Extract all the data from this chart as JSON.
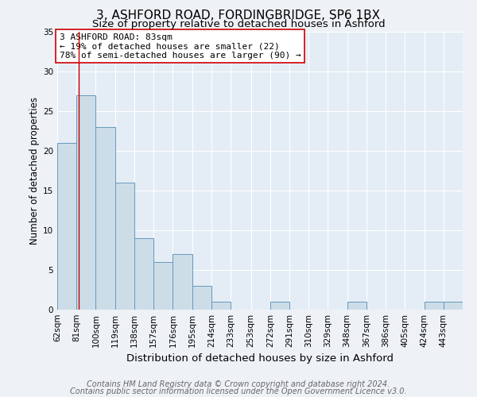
{
  "title1": "3, ASHFORD ROAD, FORDINGBRIDGE, SP6 1BX",
  "title2": "Size of property relative to detached houses in Ashford",
  "xlabel": "Distribution of detached houses by size in Ashford",
  "ylabel": "Number of detached properties",
  "bins": [
    62,
    81,
    100,
    119,
    138,
    157,
    176,
    195,
    214,
    233,
    253,
    272,
    291,
    310,
    329,
    348,
    367,
    386,
    405,
    424,
    443
  ],
  "counts": [
    21,
    27,
    23,
    16,
    9,
    6,
    7,
    3,
    1,
    0,
    0,
    1,
    0,
    0,
    0,
    1,
    0,
    0,
    0,
    1,
    1
  ],
  "bar_color": "#ccdde8",
  "bar_edge_color": "#6699bb",
  "vline_x": 83,
  "vline_color": "#cc0000",
  "annotation_title": "3 ASHFORD ROAD: 83sqm",
  "annotation_line2": "← 19% of detached houses are smaller (22)",
  "annotation_line3": "78% of semi-detached houses are larger (90) →",
  "annotation_box_color": "#ffffff",
  "annotation_border_color": "#cc0000",
  "ylim": [
    0,
    35
  ],
  "yticks": [
    0,
    5,
    10,
    15,
    20,
    25,
    30,
    35
  ],
  "footer1": "Contains HM Land Registry data © Crown copyright and database right 2024.",
  "footer2": "Contains public sector information licensed under the Open Government Licence v3.0.",
  "bg_color": "#eef2f6",
  "plot_bg_color": "#e4edf5",
  "grid_color": "#ffffff",
  "title1_fontsize": 11,
  "title2_fontsize": 9.5,
  "xlabel_fontsize": 9.5,
  "ylabel_fontsize": 8.5,
  "tick_fontsize": 7.5,
  "annotation_fontsize": 8,
  "footer_fontsize": 7
}
